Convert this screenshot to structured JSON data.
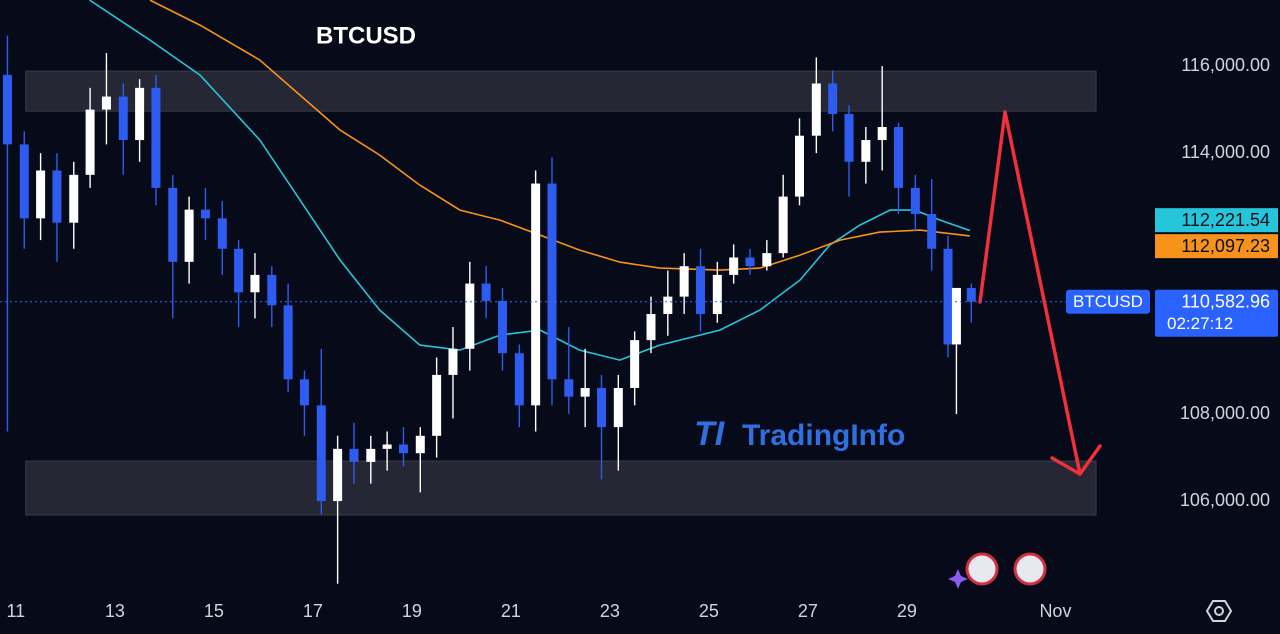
{
  "chart_data": {
    "type": "candlestick",
    "title": "BTCUSD",
    "watermark_logo": "TI",
    "watermark": "TradingInfo",
    "up_color": "#ffffff",
    "down_color": "#2f5cf0",
    "x": [
      10.83,
      11.17,
      11.5,
      11.83,
      12.17,
      12.5,
      12.83,
      13.17,
      13.5,
      13.83,
      14.17,
      14.5,
      14.83,
      15.17,
      15.5,
      15.83,
      16.17,
      16.5,
      16.83,
      17.17,
      17.5,
      17.83,
      18.17,
      18.5,
      18.83,
      19.17,
      19.5,
      19.83,
      20.17,
      20.5,
      20.83,
      21.17,
      21.5,
      21.83,
      22.17,
      22.5,
      22.83,
      23.17,
      23.5,
      23.83,
      24.17,
      24.5,
      24.83,
      25.17,
      25.5,
      25.83,
      26.17,
      26.5,
      26.83,
      27.17,
      27.5,
      27.83,
      28.17,
      28.5,
      28.83,
      29.17,
      29.5,
      29.83,
      30.0,
      30.3
    ],
    "open": [
      115800,
      114200,
      112500,
      113600,
      112400,
      113500,
      115000,
      115300,
      114300,
      115500,
      113200,
      111500,
      112700,
      112500,
      111800,
      110800,
      111200,
      110500,
      108800,
      108200,
      106000,
      107200,
      106900,
      107200,
      107300,
      107100,
      107500,
      108900,
      109500,
      111000,
      110600,
      109400,
      108200,
      113300,
      108800,
      108400,
      108600,
      107700,
      108600,
      109700,
      110300,
      110700,
      111400,
      110300,
      111200,
      111600,
      111400,
      111700,
      113000,
      114400,
      115600,
      114900,
      113800,
      114300,
      114600,
      113200,
      112600,
      111800,
      109600,
      110900
    ],
    "high": [
      116700,
      114500,
      114000,
      114000,
      113800,
      115500,
      116300,
      115600,
      115700,
      115800,
      113500,
      113000,
      113200,
      112900,
      112000,
      111700,
      111400,
      111000,
      109000,
      109500,
      107500,
      107800,
      107500,
      107600,
      107700,
      107700,
      109300,
      110000,
      111500,
      111400,
      110900,
      109600,
      113600,
      113900,
      110000,
      109500,
      108900,
      108900,
      109900,
      110700,
      111300,
      111700,
      111800,
      111500,
      111900,
      111800,
      112000,
      113500,
      114800,
      116200,
      115900,
      115100,
      114600,
      116000,
      114700,
      113500,
      113400,
      112100,
      110900,
      111000
    ],
    "low": [
      107600,
      111800,
      112000,
      111500,
      111800,
      113200,
      114200,
      113500,
      113800,
      112800,
      110200,
      111000,
      112000,
      111200,
      110000,
      110200,
      110000,
      108500,
      107500,
      105700,
      104100,
      106400,
      106400,
      106700,
      106800,
      106200,
      107000,
      107900,
      109000,
      110200,
      109000,
      107700,
      107600,
      108200,
      108000,
      107700,
      106500,
      106700,
      108200,
      109400,
      109800,
      110300,
      109900,
      110100,
      111000,
      111200,
      111300,
      111600,
      112800,
      114000,
      114500,
      113000,
      113300,
      113600,
      112600,
      112200,
      111300,
      109300,
      108000,
      110100
    ],
    "close": [
      114200,
      112500,
      113600,
      112400,
      113500,
      115000,
      115300,
      114300,
      115500,
      113200,
      111500,
      112700,
      112500,
      111800,
      110800,
      111200,
      110500,
      108800,
      108200,
      106000,
      107200,
      106900,
      107200,
      107300,
      107100,
      107500,
      108900,
      109500,
      111000,
      110600,
      109400,
      108200,
      113300,
      108800,
      108400,
      108600,
      107700,
      108600,
      109700,
      110300,
      110700,
      111400,
      110300,
      111200,
      111600,
      111400,
      111700,
      113000,
      114400,
      115600,
      114900,
      113800,
      114300,
      114600,
      113200,
      112600,
      111800,
      109600,
      110900,
      110582.96
    ],
    "lines": [
      {
        "color": "#26c6da",
        "x": [
          12.49,
          13.71,
          14.72,
          15.93,
          16.74,
          17.55,
          18.35,
          19.16,
          19.97,
          20.78,
          21.59,
          22.39,
          23.2,
          24.01,
          25.22,
          26.03,
          26.84,
          27.44,
          28.05,
          28.66,
          29.16,
          29.67,
          30.27
        ],
        "values": [
          117517,
          116598,
          115793,
          114299,
          112920,
          111540,
          110391,
          109586,
          109471,
          109816,
          109931,
          109471,
          109241,
          109586,
          109931,
          110391,
          111080,
          111885,
          112345,
          112690,
          112690,
          112460,
          112221.54
        ],
        "last_label": "112,221.54"
      },
      {
        "color": "#f7931a",
        "x": [
          13.71,
          14.72,
          15.93,
          16.74,
          17.55,
          18.35,
          19.16,
          19.97,
          20.78,
          21.59,
          22.39,
          23.2,
          24.01,
          25.22,
          26.03,
          26.84,
          27.65,
          28.45,
          29.26,
          30.27
        ],
        "values": [
          117517,
          116943,
          116138,
          115333,
          114529,
          113954,
          113264,
          112690,
          112460,
          112115,
          111770,
          111494,
          111356,
          111310,
          111356,
          111655,
          112000,
          112184,
          112230,
          112097.23
        ],
        "last_label": "112,097.23"
      }
    ],
    "zones": [
      {
        "xlim": [
          11.2,
          32.82
        ],
        "ylim": [
          114965,
          115885
        ]
      },
      {
        "xlim": [
          11.2,
          32.82
        ],
        "ylim": [
          105678,
          106919
        ]
      }
    ],
    "last_price": {
      "value": 110582.96,
      "label": "110,582.96"
    },
    "countdown": "02:27:12",
    "xlim": [
      10.68,
      33.91
    ],
    "ylim": [
      103840,
      117520
    ],
    "xticks": [
      11,
      13,
      15,
      17,
      19,
      21,
      23,
      25,
      27,
      29,
      {
        "value": 32,
        "label": "Nov"
      }
    ],
    "yticks": [
      {
        "value": 116000,
        "label": "116,000.00"
      },
      {
        "value": 114000,
        "label": "114,000.00"
      },
      {
        "value": 108000,
        "label": "108,000.00"
      },
      {
        "value": 106000,
        "label": "106,000.00"
      }
    ]
  }
}
